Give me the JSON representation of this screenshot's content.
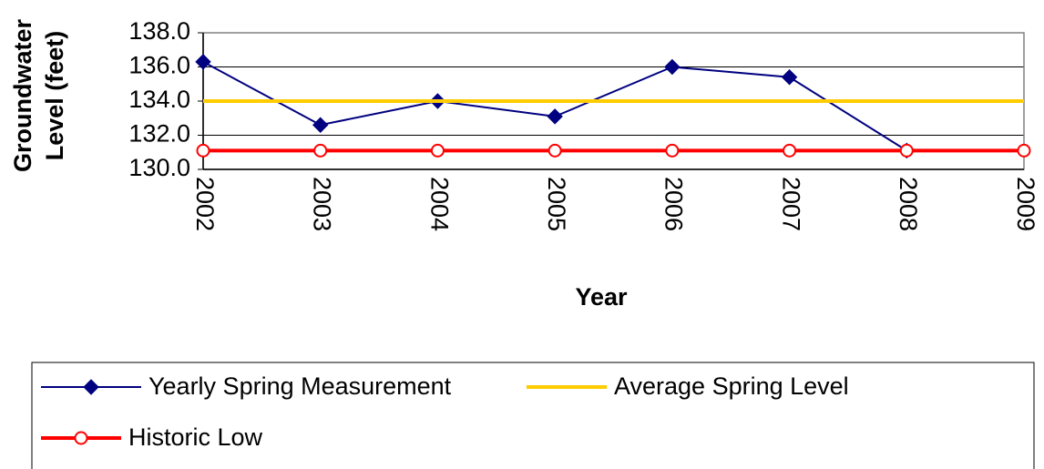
{
  "chart_data": {
    "type": "line",
    "x_label": "Year",
    "y_label_lines": [
      "Groundwater",
      "Level (feet)"
    ],
    "categories": [
      "2002",
      "2003",
      "2004",
      "2005",
      "2006",
      "2007",
      "2008",
      "2009"
    ],
    "series": [
      {
        "name": "Yearly Spring Measurement",
        "color": "#000080",
        "marker": "diamond",
        "values": [
          136.3,
          132.6,
          134.0,
          133.1,
          136.0,
          135.4,
          131.1,
          null
        ]
      },
      {
        "name": "Average Spring Level",
        "color": "#FFCC00",
        "marker": "none",
        "values": [
          134.0,
          134.0,
          134.0,
          134.0,
          134.0,
          134.0,
          134.0,
          134.0
        ]
      },
      {
        "name": "Historic Low",
        "color": "#FF0000",
        "marker": "circle",
        "values": [
          131.1,
          131.1,
          131.1,
          131.1,
          131.1,
          131.1,
          131.1,
          131.1
        ]
      }
    ],
    "ylim": [
      130,
      138
    ],
    "yticks": [
      {
        "value": 130,
        "label": "130.0"
      },
      {
        "value": 132,
        "label": "132.0"
      },
      {
        "value": 134,
        "label": "134.0"
      },
      {
        "value": 136,
        "label": "136.0"
      },
      {
        "value": 138,
        "label": "138.0"
      }
    ],
    "grid": true,
    "legend": "bottom"
  }
}
